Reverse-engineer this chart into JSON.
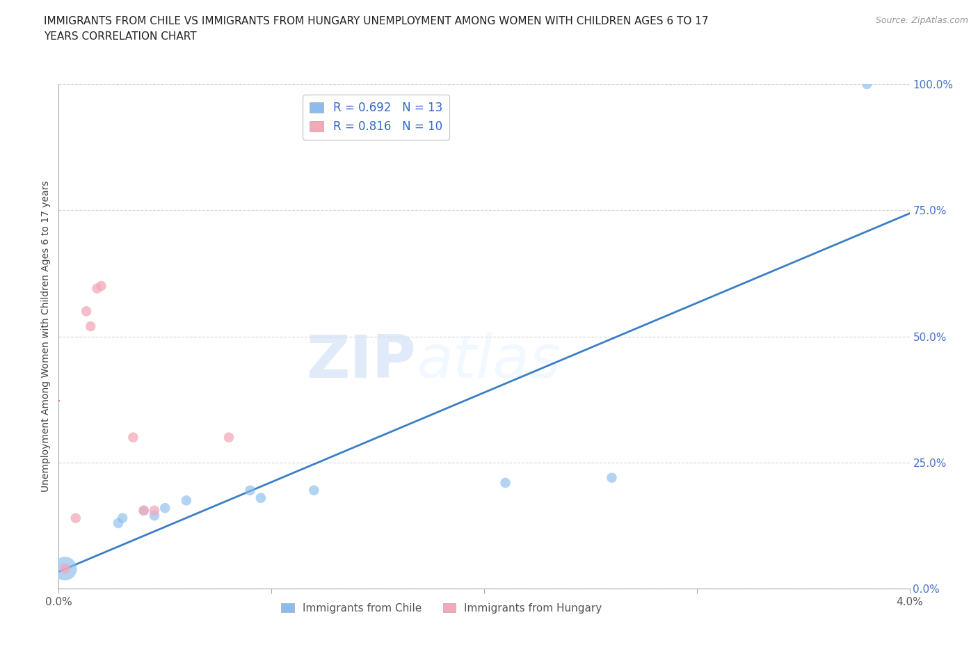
{
  "title": "IMMIGRANTS FROM CHILE VS IMMIGRANTS FROM HUNGARY UNEMPLOYMENT AMONG WOMEN WITH CHILDREN AGES 6 TO 17\nYEARS CORRELATION CHART",
  "source": "Source: ZipAtlas.com",
  "ylabel": "Unemployment Among Women with Children Ages 6 to 17 years",
  "xlim": [
    0,
    0.04
  ],
  "ylim": [
    0,
    1.0
  ],
  "xticks": [
    0.0,
    0.01,
    0.02,
    0.03,
    0.04
  ],
  "xtick_labels": [
    "0.0%",
    "",
    "",
    "",
    "4.0%"
  ],
  "yticks": [
    0.0,
    0.25,
    0.5,
    0.75,
    1.0
  ],
  "ytick_labels": [
    "0.0%",
    "25.0%",
    "50.0%",
    "75.0%",
    "100.0%"
  ],
  "chile_color": "#8BBCEE",
  "hungary_color": "#F4A8BA",
  "chile_line_color": "#3B7EC5",
  "hungary_line_color": "#E86080",
  "chile_R": 0.692,
  "chile_N": 13,
  "hungary_R": 0.816,
  "hungary_N": 10,
  "watermark_zip": "ZIP",
  "watermark_atlas": "atlas",
  "background_color": "#ffffff",
  "grid_color": "#cccccc",
  "chile_points": [
    [
      0.0003,
      0.04,
      600
    ],
    [
      0.0028,
      0.13,
      100
    ],
    [
      0.003,
      0.14,
      100
    ],
    [
      0.004,
      0.155,
      100
    ],
    [
      0.0045,
      0.145,
      100
    ],
    [
      0.005,
      0.16,
      100
    ],
    [
      0.006,
      0.175,
      100
    ],
    [
      0.009,
      0.195,
      100
    ],
    [
      0.0095,
      0.18,
      100
    ],
    [
      0.012,
      0.195,
      100
    ],
    [
      0.021,
      0.21,
      100
    ],
    [
      0.026,
      0.22,
      100
    ],
    [
      0.038,
      1.0,
      100
    ]
  ],
  "hungary_points": [
    [
      0.0003,
      0.04,
      100
    ],
    [
      0.0008,
      0.14,
      100
    ],
    [
      0.0013,
      0.55,
      100
    ],
    [
      0.0015,
      0.52,
      100
    ],
    [
      0.0018,
      0.595,
      100
    ],
    [
      0.002,
      0.6,
      100
    ],
    [
      0.0035,
      0.3,
      100
    ],
    [
      0.004,
      0.155,
      100
    ],
    [
      0.0045,
      0.155,
      100
    ],
    [
      0.008,
      0.3,
      100
    ]
  ]
}
